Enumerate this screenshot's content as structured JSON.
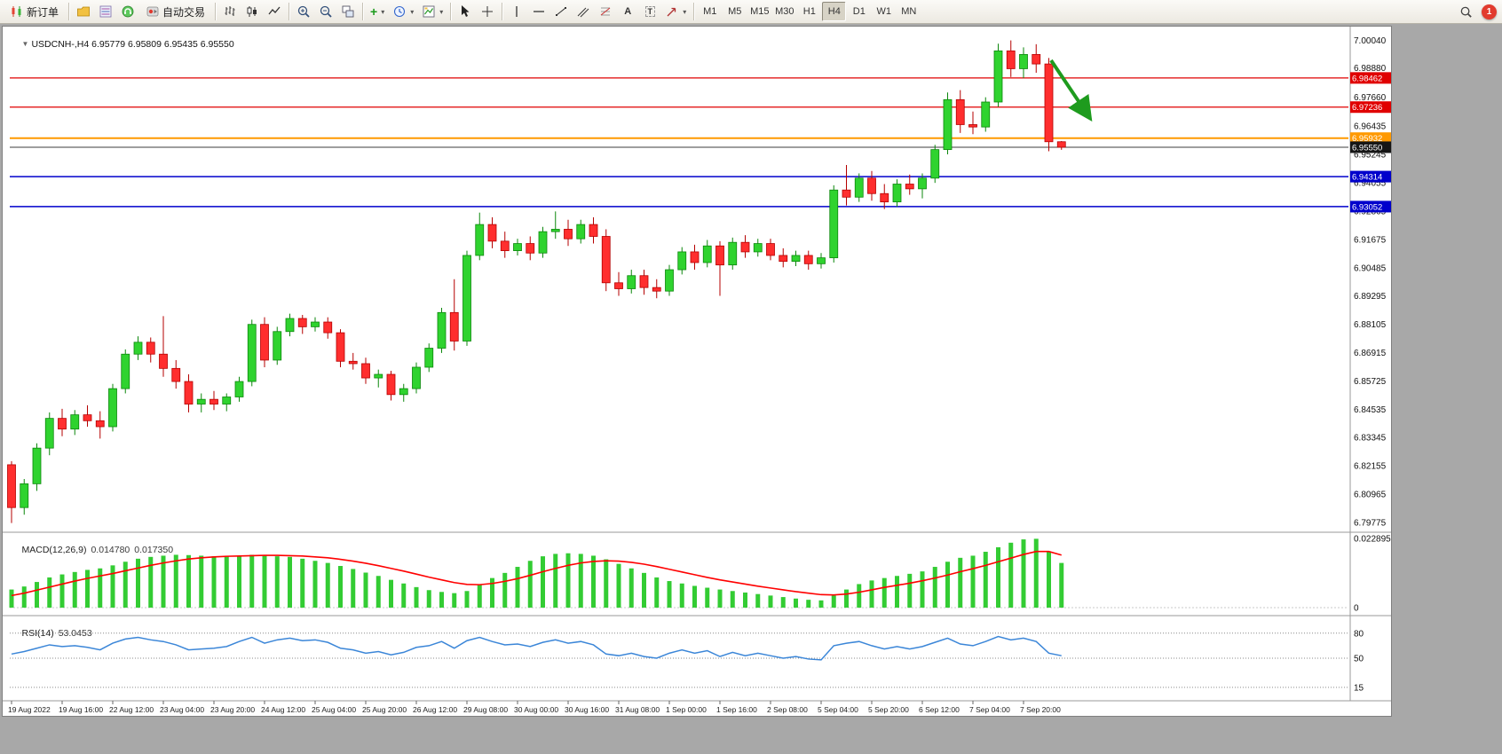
{
  "toolbar": {
    "new_order_label": "新订单",
    "autotrading_label": "自动交易",
    "timeframes": [
      "M1",
      "M5",
      "M15",
      "M30",
      "H1",
      "H4",
      "D1",
      "W1",
      "MN"
    ],
    "active_timeframe": "H4",
    "notification_count": "1"
  },
  "glyphs": {
    "header_arrow": "▼",
    "caret": "▾",
    "plus": "+",
    "text_tool": "A",
    "label_tool": "T"
  },
  "chart": {
    "symbol_period": "USDCNH-,H4",
    "ohlc": "6.95779 6.95809 6.95435 6.95550",
    "levels": [
      {
        "price": 6.98462,
        "label": "6.98462",
        "color": "#e00000",
        "width": 1.2
      },
      {
        "price": 6.97236,
        "label": "6.97236",
        "color": "#e00000",
        "width": 1.2
      },
      {
        "price": 6.95932,
        "label": "6.95932",
        "color": "#ff9900",
        "width": 2
      },
      {
        "price": 6.94314,
        "label": "6.94314",
        "color": "#0000cc",
        "width": 1.5
      },
      {
        "price": 6.93052,
        "label": "6.93052",
        "color": "#0000cc",
        "width": 1.5
      }
    ],
    "current_price": {
      "price": 6.9555,
      "label": "6.95550",
      "color": "#161616"
    },
    "annotation_arrow": {
      "color": "#1e9b1e",
      "direction": "down-right"
    }
  },
  "colors": {
    "up": "#2fd32f",
    "up_stroke": "#0c870c",
    "down": "#ff2e2e",
    "down_stroke": "#b50000",
    "macd_bar": "#33cc33",
    "macd_signal": "#ff0000",
    "rsi": "#3b86d8"
  },
  "chart_data": {
    "type": "candlestick",
    "symbol": "USDCNH-",
    "timeframe": "H4",
    "price_range": [
      6.794,
      7.0062
    ],
    "price_axis_labels": [
      "7.00040",
      "6.98880",
      "6.97660",
      "6.96435",
      "6.95245",
      "6.94055",
      "6.92865",
      "6.91675",
      "6.90485",
      "6.89295",
      "6.88105",
      "6.86915",
      "6.85725",
      "6.84535",
      "6.83345",
      "6.82155",
      "6.80965",
      "6.79775"
    ],
    "time_axis_labels": [
      "19 Aug 2022",
      "19 Aug 16:00",
      "22 Aug 12:00",
      "23 Aug 04:00",
      "23 Aug 20:00",
      "24 Aug 12:00",
      "25 Aug 04:00",
      "25 Aug 20:00",
      "26 Aug 12:00",
      "29 Aug 08:00",
      "30 Aug 00:00",
      "30 Aug 16:00",
      "31 Aug 08:00",
      "1 Sep 00:00",
      "1 Sep 16:00",
      "2 Sep 08:00",
      "5 Sep 04:00",
      "5 Sep 20:00",
      "6 Sep 12:00",
      "7 Sep 04:00",
      "7 Sep 20:00"
    ],
    "candles": [
      [
        6.822,
        6.8235,
        6.7975,
        6.804
      ],
      [
        6.804,
        6.816,
        6.801,
        6.814
      ],
      [
        6.814,
        6.831,
        6.811,
        6.829
      ],
      [
        6.829,
        6.844,
        6.826,
        6.8415
      ],
      [
        6.8415,
        6.8455,
        6.834,
        6.837
      ],
      [
        6.837,
        6.845,
        6.8345,
        6.843
      ],
      [
        6.843,
        6.847,
        6.838,
        6.8405
      ],
      [
        6.8405,
        6.8445,
        6.833,
        6.838
      ],
      [
        6.838,
        6.856,
        6.836,
        6.854
      ],
      [
        6.854,
        6.8705,
        6.852,
        6.8685
      ],
      [
        6.8685,
        6.876,
        6.866,
        6.8735
      ],
      [
        6.8735,
        6.8755,
        6.865,
        6.8685
      ],
      [
        6.8685,
        6.8845,
        6.859,
        6.8625
      ],
      [
        6.8625,
        6.866,
        6.854,
        6.857
      ],
      [
        6.857,
        6.86,
        6.844,
        6.8475
      ],
      [
        6.8475,
        6.852,
        6.844,
        6.8495
      ],
      [
        6.8495,
        6.853,
        6.845,
        6.8475
      ],
      [
        6.8475,
        6.852,
        6.8445,
        6.8505
      ],
      [
        6.8505,
        6.859,
        6.8485,
        6.857
      ],
      [
        6.857,
        6.883,
        6.855,
        6.881
      ],
      [
        6.881,
        6.884,
        6.863,
        6.866
      ],
      [
        6.866,
        6.88,
        6.864,
        6.878
      ],
      [
        6.878,
        6.8855,
        6.876,
        6.8835
      ],
      [
        6.8835,
        6.885,
        6.877,
        6.88
      ],
      [
        6.88,
        6.884,
        6.878,
        6.882
      ],
      [
        6.882,
        6.884,
        6.875,
        6.8775
      ],
      [
        6.8775,
        6.879,
        6.863,
        6.8655
      ],
      [
        6.8655,
        6.869,
        6.862,
        6.8645
      ],
      [
        6.8645,
        6.867,
        6.856,
        6.8585
      ],
      [
        6.8585,
        6.862,
        6.8545,
        6.86
      ],
      [
        6.86,
        6.8615,
        6.849,
        6.8515
      ],
      [
        6.8515,
        6.856,
        6.8485,
        6.854
      ],
      [
        6.854,
        6.865,
        6.852,
        6.863
      ],
      [
        6.863,
        6.873,
        6.861,
        6.871
      ],
      [
        6.871,
        6.888,
        6.869,
        6.886
      ],
      [
        6.886,
        6.9,
        6.87,
        6.874
      ],
      [
        6.874,
        6.912,
        6.872,
        6.91
      ],
      [
        6.91,
        6.928,
        6.908,
        6.923
      ],
      [
        6.923,
        6.926,
        6.913,
        6.916
      ],
      [
        6.916,
        6.92,
        6.909,
        6.912
      ],
      [
        6.912,
        6.917,
        6.91,
        6.915
      ],
      [
        6.915,
        6.918,
        6.908,
        6.911
      ],
      [
        6.911,
        6.922,
        6.909,
        6.92
      ],
      [
        6.92,
        6.9285,
        6.917,
        6.921
      ],
      [
        6.921,
        6.925,
        6.914,
        6.917
      ],
      [
        6.917,
        6.925,
        6.915,
        6.923
      ],
      [
        6.923,
        6.926,
        6.915,
        6.918
      ],
      [
        6.918,
        6.921,
        6.895,
        6.8985
      ],
      [
        6.8985,
        6.903,
        6.893,
        6.896
      ],
      [
        6.896,
        6.904,
        6.894,
        6.9015
      ],
      [
        6.9015,
        6.904,
        6.8935,
        6.8965
      ],
      [
        6.8965,
        6.9,
        6.892,
        6.895
      ],
      [
        6.895,
        6.906,
        6.893,
        6.904
      ],
      [
        6.904,
        6.9135,
        6.902,
        6.9115
      ],
      [
        6.9115,
        6.9145,
        6.904,
        6.907
      ],
      [
        6.907,
        6.9165,
        6.905,
        6.914
      ],
      [
        6.914,
        6.916,
        6.893,
        6.906
      ],
      [
        6.906,
        6.9175,
        6.904,
        6.9155
      ],
      [
        6.9155,
        6.9185,
        6.909,
        6.9115
      ],
      [
        6.9115,
        6.917,
        6.9095,
        6.915
      ],
      [
        6.915,
        6.917,
        6.908,
        6.91
      ],
      [
        6.91,
        6.913,
        6.905,
        6.9075
      ],
      [
        6.9075,
        6.912,
        6.9055,
        6.91
      ],
      [
        6.91,
        6.912,
        6.904,
        6.9065
      ],
      [
        6.9065,
        6.911,
        6.9045,
        6.909
      ],
      [
        6.909,
        6.9395,
        6.907,
        6.9375
      ],
      [
        6.9375,
        6.948,
        6.931,
        6.9345
      ],
      [
        6.9345,
        6.9445,
        6.9325,
        6.9425
      ],
      [
        6.9425,
        6.9455,
        6.933,
        6.936
      ],
      [
        6.936,
        6.94,
        6.9295,
        6.9325
      ],
      [
        6.9325,
        6.942,
        6.9305,
        6.94
      ],
      [
        6.94,
        6.944,
        6.9355,
        6.938
      ],
      [
        6.938,
        6.9445,
        6.934,
        6.9425
      ],
      [
        6.9425,
        6.9565,
        6.9405,
        6.9545
      ],
      [
        6.9545,
        6.9785,
        6.9525,
        6.9755
      ],
      [
        6.9755,
        6.9795,
        6.9615,
        6.965
      ],
      [
        6.965,
        6.9705,
        6.961,
        6.964
      ],
      [
        6.964,
        6.9765,
        6.962,
        6.9745
      ],
      [
        6.9745,
        6.999,
        6.9725,
        6.996
      ],
      [
        6.996,
        7.0004,
        6.985,
        6.9885
      ],
      [
        6.9885,
        6.9975,
        6.9845,
        6.9945
      ],
      [
        6.9945,
        6.9988,
        6.9868,
        6.9905
      ],
      [
        6.9905,
        6.993,
        6.9538,
        6.9578
      ],
      [
        6.9578,
        6.9581,
        6.9544,
        6.9555
      ]
    ],
    "macd": {
      "label": "MACD(12,26,9)",
      "value_main": "0.014780",
      "value_signal": "0.017350",
      "axis_max_label": "0.022895",
      "axis_min_label": "0",
      "axis_max": 0.022895,
      "histogram": [
        0.006,
        0.007,
        0.0085,
        0.01,
        0.011,
        0.0118,
        0.0125,
        0.013,
        0.014,
        0.0152,
        0.0162,
        0.0168,
        0.0172,
        0.0175,
        0.0174,
        0.0172,
        0.017,
        0.017,
        0.0172,
        0.0175,
        0.0173,
        0.017,
        0.0168,
        0.0162,
        0.0155,
        0.0148,
        0.0138,
        0.0128,
        0.0116,
        0.0105,
        0.0092,
        0.008,
        0.0068,
        0.0058,
        0.0052,
        0.0048,
        0.0055,
        0.0075,
        0.0098,
        0.0115,
        0.0135,
        0.0155,
        0.017,
        0.0178,
        0.018,
        0.0178,
        0.0172,
        0.016,
        0.0145,
        0.013,
        0.0115,
        0.01,
        0.0088,
        0.008,
        0.0072,
        0.0066,
        0.006,
        0.0055,
        0.005,
        0.0045,
        0.004,
        0.0035,
        0.003,
        0.0026,
        0.0024,
        0.004,
        0.006,
        0.0078,
        0.009,
        0.0098,
        0.0105,
        0.0112,
        0.012,
        0.0135,
        0.0152,
        0.0165,
        0.0172,
        0.0185,
        0.02,
        0.0215,
        0.0226,
        0.0228,
        0.0185,
        0.0148
      ],
      "signal": [
        0.004,
        0.0048,
        0.0058,
        0.0068,
        0.0078,
        0.0088,
        0.0097,
        0.0105,
        0.0113,
        0.0122,
        0.0131,
        0.014,
        0.0148,
        0.0155,
        0.0161,
        0.0165,
        0.0168,
        0.017,
        0.0171,
        0.0172,
        0.0173,
        0.0173,
        0.0172,
        0.0171,
        0.0168,
        0.0165,
        0.016,
        0.0154,
        0.0147,
        0.0139,
        0.013,
        0.0121,
        0.0111,
        0.0101,
        0.0092,
        0.0083,
        0.0077,
        0.0076,
        0.008,
        0.0087,
        0.0096,
        0.0107,
        0.0119,
        0.013,
        0.014,
        0.0148,
        0.0153,
        0.0155,
        0.0154,
        0.015,
        0.0144,
        0.0136,
        0.0127,
        0.0118,
        0.0109,
        0.01,
        0.0092,
        0.0085,
        0.0078,
        0.0071,
        0.0065,
        0.0059,
        0.0053,
        0.0048,
        0.0043,
        0.0042,
        0.0045,
        0.0051,
        0.0059,
        0.0067,
        0.0074,
        0.0081,
        0.0089,
        0.0098,
        0.0108,
        0.0119,
        0.0129,
        0.014,
        0.0152,
        0.0164,
        0.0176,
        0.0186,
        0.0186,
        0.0174
      ]
    },
    "rsi": {
      "label": "RSI(14)",
      "value": "53.0453",
      "levels": [
        80,
        50,
        15
      ],
      "values": [
        55,
        58,
        62,
        66,
        64,
        65,
        63,
        60,
        68,
        73,
        75,
        72,
        70,
        66,
        60,
        61,
        62,
        64,
        70,
        75,
        68,
        72,
        74,
        71,
        72,
        69,
        62,
        60,
        56,
        58,
        54,
        57,
        63,
        65,
        70,
        62,
        71,
        75,
        70,
        66,
        67,
        64,
        69,
        72,
        68,
        70,
        66,
        55,
        53,
        56,
        52,
        50,
        56,
        60,
        56,
        59,
        52,
        57,
        53,
        56,
        53,
        50,
        52,
        49,
        48,
        65,
        68,
        70,
        65,
        61,
        64,
        61,
        64,
        69,
        74,
        67,
        65,
        70,
        76,
        72,
        74,
        70,
        56,
        53
      ]
    }
  }
}
